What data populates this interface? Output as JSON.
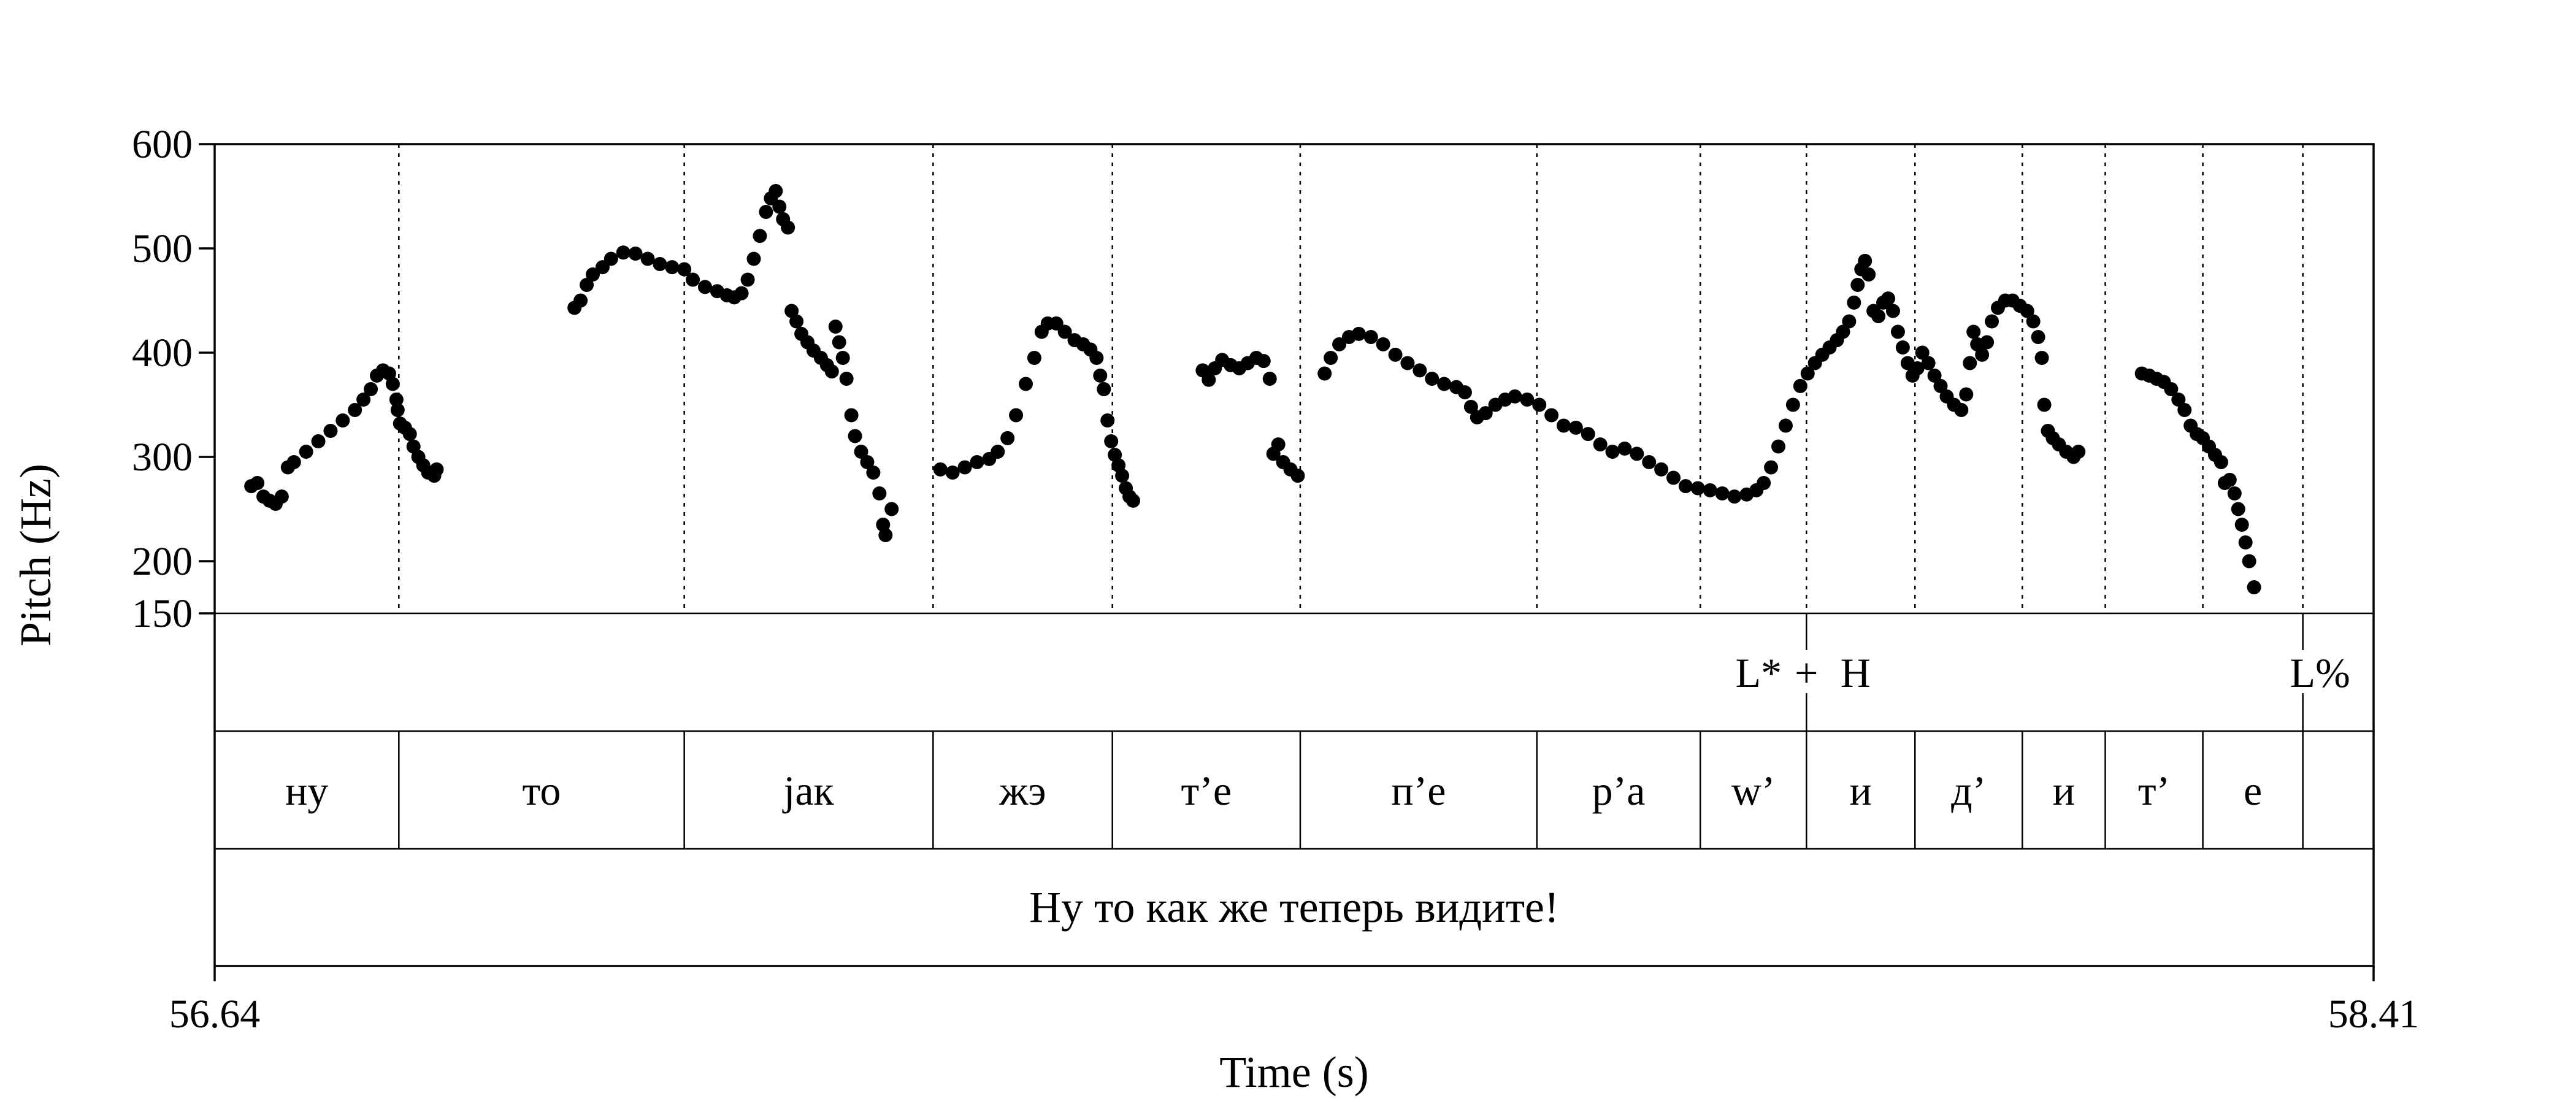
{
  "chart_data": {
    "type": "scatter",
    "title": "",
    "xlabel": "Time (s)",
    "ylabel": "Pitch (Hz)",
    "xlim": [
      56.64,
      58.41
    ],
    "ylim": [
      150,
      600
    ],
    "xticks": [
      "56.64",
      "58.41"
    ],
    "yticks": [
      {
        "value": 150,
        "label": "150"
      },
      {
        "value": 200,
        "label": "200"
      },
      {
        "value": 300,
        "label": "300"
      },
      {
        "value": 400,
        "label": "400"
      },
      {
        "value": 500,
        "label": "500"
      },
      {
        "value": 600,
        "label": "600"
      }
    ],
    "boundaries": [
      56.791,
      57.025,
      57.229,
      57.376,
      57.53,
      57.724,
      57.858,
      57.945,
      58.034,
      58.122,
      58.19,
      58.27,
      58.352
    ],
    "tone_tier": [
      {
        "label": "L*",
        "time": 57.945
      },
      {
        "label": "+",
        "time": 57.945
      },
      {
        "label": "H",
        "time": 57.945
      },
      {
        "label": "L%",
        "time": 58.352
      }
    ],
    "segments": [
      {
        "label": "ну",
        "start": 56.64,
        "end": 56.791
      },
      {
        "label": "то",
        "start": 56.791,
        "end": 57.025
      },
      {
        "label": "jак",
        "start": 57.025,
        "end": 57.229
      },
      {
        "label": "жэ",
        "start": 57.229,
        "end": 57.376
      },
      {
        "label": "т’е",
        "start": 57.376,
        "end": 57.53
      },
      {
        "label": "п’е",
        "start": 57.53,
        "end": 57.724
      },
      {
        "label": "р’а",
        "start": 57.724,
        "end": 57.858
      },
      {
        "label": "w’",
        "start": 57.858,
        "end": 57.945
      },
      {
        "label": "и",
        "start": 57.945,
        "end": 58.034
      },
      {
        "label": "д’",
        "start": 58.034,
        "end": 58.122
      },
      {
        "label": "и",
        "start": 58.122,
        "end": 58.19
      },
      {
        "label": "т’",
        "start": 58.19,
        "end": 58.27
      },
      {
        "label": "е",
        "start": 58.27,
        "end": 58.352
      }
    ],
    "sentence": "Ну то как же теперь видите!",
    "series": [
      {
        "points": [
          [
            56.67,
            272
          ],
          [
            56.675,
            275
          ],
          [
            56.68,
            262
          ],
          [
            56.685,
            258
          ],
          [
            56.69,
            255
          ],
          [
            56.695,
            262
          ],
          [
            56.7,
            290
          ],
          [
            56.705,
            295
          ],
          [
            56.715,
            305
          ],
          [
            56.725,
            315
          ],
          [
            56.735,
            325
          ],
          [
            56.745,
            335
          ],
          [
            56.755,
            345
          ],
          [
            56.762,
            355
          ],
          [
            56.768,
            365
          ],
          [
            56.773,
            378
          ],
          [
            56.778,
            383
          ],
          [
            56.783,
            380
          ],
          [
            56.786,
            370
          ],
          [
            56.789,
            355
          ],
          [
            56.79,
            345
          ],
          [
            56.792,
            332
          ],
          [
            56.796,
            328
          ],
          [
            56.8,
            322
          ],
          [
            56.803,
            310
          ],
          [
            56.807,
            300
          ],
          [
            56.811,
            292
          ],
          [
            56.815,
            285
          ],
          [
            56.82,
            282
          ],
          [
            56.822,
            288
          ]
        ]
      },
      {
        "points": [
          [
            56.935,
            443
          ],
          [
            56.94,
            450
          ],
          [
            56.945,
            465
          ],
          [
            56.95,
            475
          ],
          [
            56.958,
            482
          ],
          [
            56.965,
            490
          ],
          [
            56.975,
            496
          ],
          [
            56.985,
            495
          ],
          [
            56.995,
            490
          ],
          [
            57.005,
            485
          ],
          [
            57.015,
            482
          ],
          [
            57.025,
            480
          ],
          [
            57.032,
            470
          ],
          [
            57.042,
            463
          ],
          [
            57.052,
            459
          ],
          [
            57.06,
            455
          ],
          [
            57.066,
            453
          ],
          [
            57.072,
            457
          ],
          [
            57.077,
            470
          ],
          [
            57.082,
            490
          ],
          [
            57.087,
            512
          ],
          [
            57.092,
            535
          ],
          [
            57.096,
            548
          ],
          [
            57.1,
            555
          ],
          [
            57.103,
            540
          ],
          [
            57.106,
            528
          ],
          [
            57.11,
            520
          ],
          [
            57.113,
            440
          ],
          [
            57.117,
            430
          ],
          [
            57.121,
            418
          ],
          [
            57.126,
            410
          ],
          [
            57.131,
            402
          ],
          [
            57.137,
            395
          ],
          [
            57.142,
            388
          ],
          [
            57.146,
            382
          ],
          [
            57.149,
            425
          ],
          [
            57.152,
            410
          ],
          [
            57.155,
            395
          ],
          [
            57.158,
            375
          ],
          [
            57.162,
            340
          ],
          [
            57.165,
            320
          ],
          [
            57.17,
            305
          ],
          [
            57.175,
            295
          ],
          [
            57.18,
            285
          ],
          [
            57.185,
            265
          ],
          [
            57.188,
            235
          ],
          [
            57.19,
            225
          ],
          [
            57.195,
            250
          ]
        ]
      },
      {
        "points": [
          [
            57.235,
            288
          ],
          [
            57.245,
            285
          ],
          [
            57.255,
            290
          ],
          [
            57.265,
            295
          ],
          [
            57.275,
            298
          ],
          [
            57.282,
            305
          ],
          [
            57.29,
            318
          ],
          [
            57.297,
            340
          ],
          [
            57.305,
            370
          ],
          [
            57.312,
            395
          ],
          [
            57.318,
            420
          ],
          [
            57.323,
            428
          ],
          [
            57.33,
            428
          ],
          [
            57.337,
            420
          ],
          [
            57.345,
            412
          ],
          [
            57.352,
            408
          ],
          [
            57.358,
            403
          ],
          [
            57.363,
            395
          ],
          [
            57.366,
            378
          ],
          [
            57.369,
            365
          ],
          [
            57.372,
            335
          ],
          [
            57.375,
            315
          ],
          [
            57.378,
            302
          ],
          [
            57.381,
            292
          ],
          [
            57.384,
            282
          ],
          [
            57.387,
            270
          ],
          [
            57.39,
            262
          ],
          [
            57.393,
            258
          ]
        ]
      },
      {
        "points": [
          [
            57.45,
            383
          ],
          [
            57.455,
            374
          ],
          [
            57.46,
            385
          ],
          [
            57.466,
            393
          ],
          [
            57.473,
            388
          ],
          [
            57.48,
            385
          ],
          [
            57.487,
            390
          ],
          [
            57.494,
            395
          ],
          [
            57.5,
            392
          ],
          [
            57.505,
            375
          ],
          [
            57.508,
            303
          ],
          [
            57.512,
            312
          ],
          [
            57.516,
            295
          ],
          [
            57.522,
            288
          ],
          [
            57.528,
            282
          ]
        ]
      },
      {
        "points": [
          [
            57.55,
            380
          ],
          [
            57.555,
            395
          ],
          [
            57.562,
            408
          ],
          [
            57.57,
            415
          ],
          [
            57.578,
            418
          ],
          [
            57.588,
            415
          ],
          [
            57.598,
            408
          ],
          [
            57.608,
            398
          ],
          [
            57.618,
            390
          ],
          [
            57.628,
            383
          ],
          [
            57.638,
            375
          ],
          [
            57.648,
            370
          ],
          [
            57.658,
            367
          ],
          [
            57.665,
            362
          ],
          [
            57.67,
            348
          ],
          [
            57.675,
            338
          ],
          [
            57.682,
            342
          ],
          [
            57.69,
            350
          ],
          [
            57.698,
            355
          ],
          [
            57.706,
            358
          ],
          [
            57.716,
            355
          ],
          [
            57.726,
            350
          ],
          [
            57.736,
            340
          ],
          [
            57.746,
            330
          ],
          [
            57.756,
            328
          ],
          [
            57.766,
            322
          ],
          [
            57.776,
            312
          ],
          [
            57.786,
            305
          ],
          [
            57.796,
            308
          ],
          [
            57.806,
            303
          ],
          [
            57.816,
            295
          ],
          [
            57.826,
            288
          ],
          [
            57.836,
            280
          ],
          [
            57.846,
            272
          ],
          [
            57.856,
            270
          ],
          [
            57.866,
            268
          ],
          [
            57.876,
            265
          ],
          [
            57.886,
            262
          ],
          [
            57.896,
            264
          ],
          [
            57.904,
            268
          ],
          [
            57.91,
            275
          ],
          [
            57.916,
            290
          ],
          [
            57.922,
            310
          ],
          [
            57.928,
            330
          ],
          [
            57.934,
            350
          ],
          [
            57.94,
            368
          ],
          [
            57.946,
            380
          ],
          [
            57.952,
            390
          ],
          [
            57.958,
            398
          ],
          [
            57.964,
            405
          ],
          [
            57.97,
            412
          ],
          [
            57.975,
            420
          ],
          [
            57.98,
            430
          ],
          [
            57.984,
            448
          ],
          [
            57.987,
            465
          ],
          [
            57.99,
            480
          ],
          [
            57.993,
            488
          ],
          [
            57.996,
            475
          ],
          [
            58.0,
            440
          ],
          [
            58.004,
            435
          ],
          [
            58.008,
            448
          ],
          [
            58.012,
            452
          ],
          [
            58.016,
            440
          ],
          [
            58.02,
            420
          ],
          [
            58.024,
            405
          ],
          [
            58.028,
            390
          ],
          [
            58.032,
            378
          ],
          [
            58.036,
            385
          ],
          [
            58.04,
            400
          ],
          [
            58.045,
            390
          ],
          [
            58.05,
            378
          ],
          [
            58.055,
            368
          ],
          [
            58.06,
            358
          ],
          [
            58.066,
            350
          ],
          [
            58.072,
            345
          ],
          [
            58.076,
            360
          ],
          [
            58.079,
            390
          ],
          [
            58.082,
            420
          ],
          [
            58.085,
            408
          ],
          [
            58.089,
            398
          ],
          [
            58.093,
            410
          ],
          [
            58.097,
            430
          ],
          [
            58.102,
            443
          ],
          [
            58.108,
            450
          ],
          [
            58.114,
            450
          ],
          [
            58.12,
            445
          ],
          [
            58.126,
            440
          ],
          [
            58.131,
            430
          ],
          [
            58.135,
            415
          ],
          [
            58.138,
            395
          ],
          [
            58.14,
            350
          ],
          [
            58.143,
            325
          ],
          [
            58.147,
            318
          ],
          [
            58.152,
            312
          ],
          [
            58.158,
            305
          ],
          [
            58.164,
            300
          ],
          [
            58.168,
            305
          ]
        ]
      },
      {
        "points": [
          [
            58.22,
            380
          ],
          [
            58.226,
            378
          ],
          [
            58.232,
            375
          ],
          [
            58.238,
            372
          ],
          [
            58.244,
            365
          ],
          [
            58.25,
            355
          ],
          [
            58.255,
            345
          ],
          [
            58.26,
            330
          ],
          [
            58.265,
            322
          ],
          [
            58.27,
            318
          ],
          [
            58.275,
            310
          ],
          [
            58.28,
            302
          ],
          [
            58.285,
            295
          ],
          [
            58.288,
            275
          ],
          [
            58.292,
            278
          ],
          [
            58.296,
            265
          ],
          [
            58.299,
            250
          ],
          [
            58.302,
            235
          ],
          [
            58.305,
            218
          ],
          [
            58.308,
            200
          ],
          [
            58.312,
            175
          ]
        ]
      }
    ]
  }
}
